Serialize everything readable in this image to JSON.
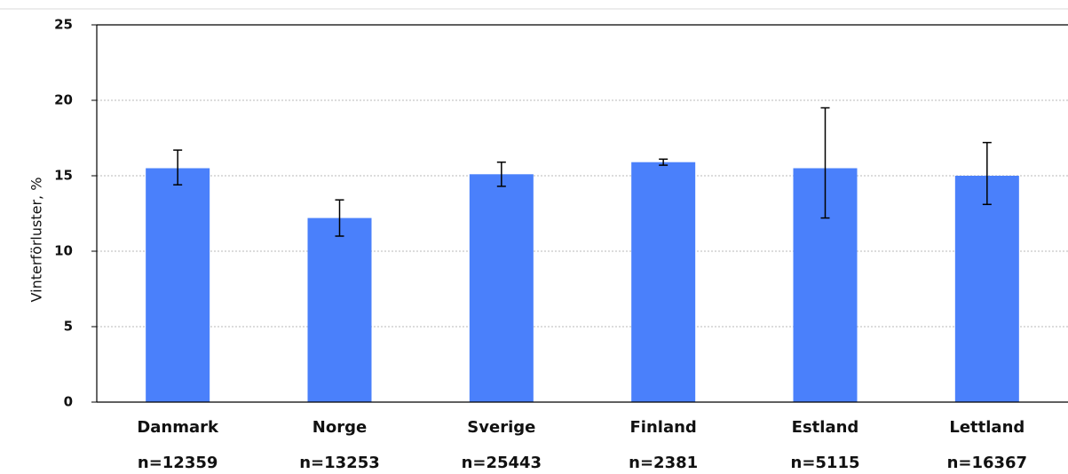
{
  "chart_data": {
    "type": "bar",
    "ylabel": "Vinterförluster, %",
    "ylim": [
      0,
      25
    ],
    "yticks": [
      "0",
      "5",
      "10",
      "15",
      "20",
      "25"
    ],
    "grid": "horizontal dotted",
    "categories": [
      "Danmark",
      "Norge",
      "Sverige",
      "Finland",
      "Estland",
      "Lettland"
    ],
    "sample_sizes": [
      "n=12359",
      "n=13253",
      "n=25443",
      "n=2381",
      "n=5115",
      "n=16367"
    ],
    "values": [
      15.5,
      12.2,
      15.1,
      15.9,
      15.5,
      15.0
    ],
    "error_low": [
      14.4,
      11.0,
      14.3,
      15.7,
      12.2,
      13.1
    ],
    "error_high": [
      16.7,
      13.4,
      15.9,
      16.1,
      19.5,
      17.2
    ],
    "colors": {
      "bar": "#4a80fb",
      "error_bar": "#000000",
      "grid": "#b8b8b8",
      "axis": "#000000"
    }
  }
}
